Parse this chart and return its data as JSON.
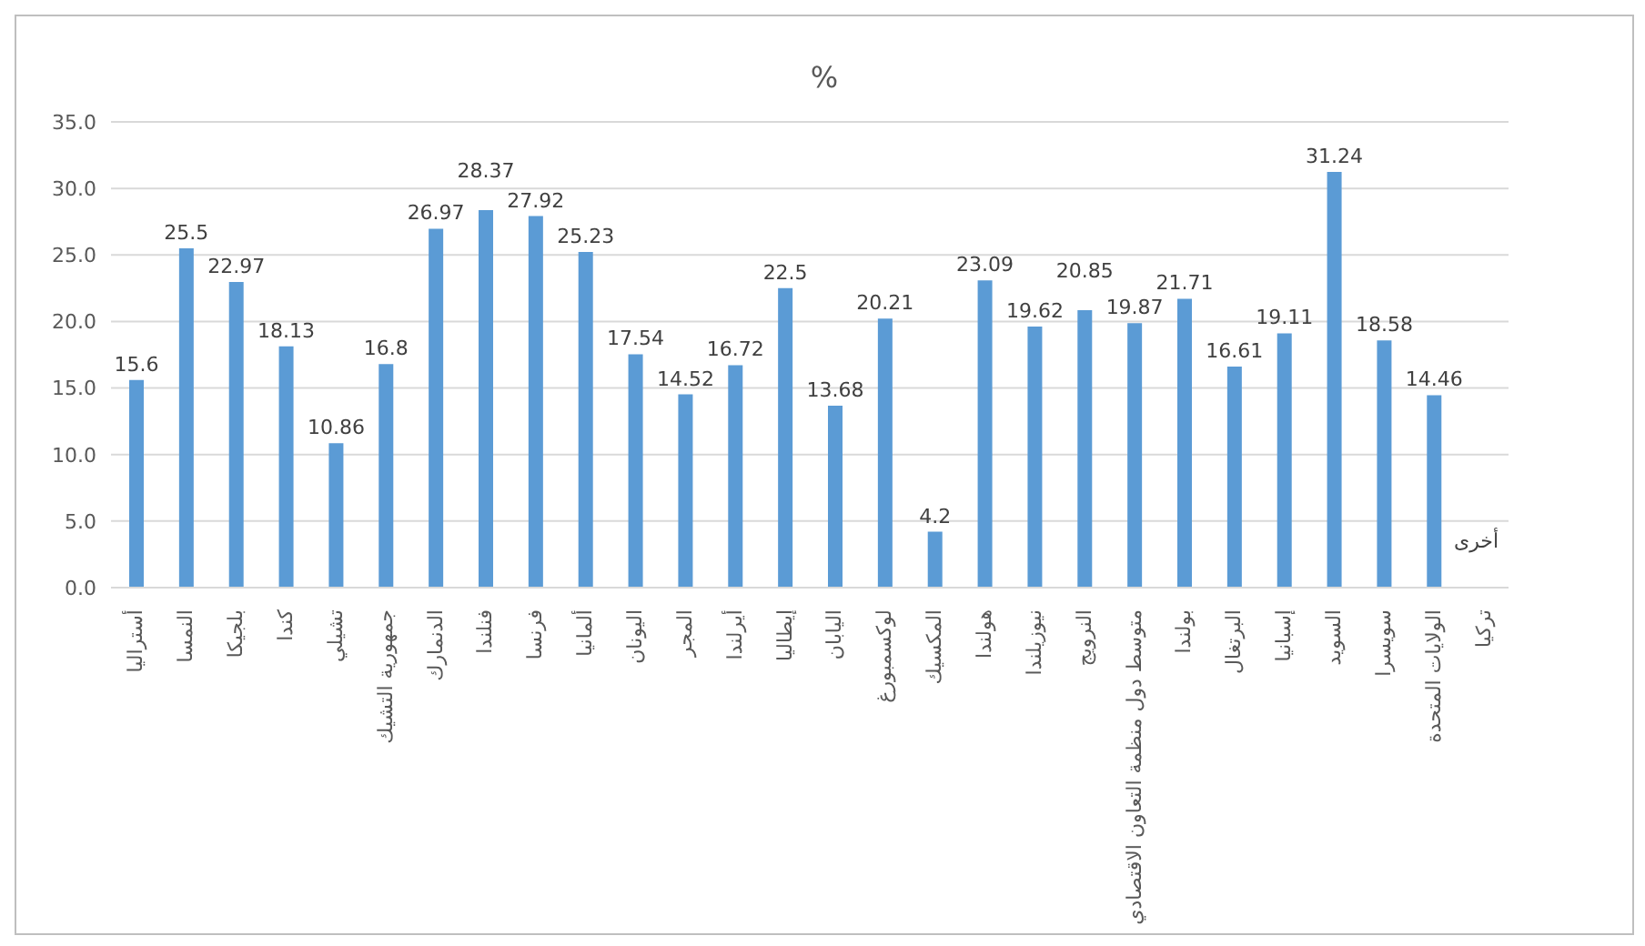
{
  "chart_data": {
    "type": "bar",
    "title": "%",
    "categories": [
      "أستراليا",
      "النمسا",
      "بلجيكا",
      "كندا",
      "تشيلي",
      "جمهورية التشيك",
      "الدنمارك",
      "فنلندا",
      "فرنسا",
      "ألمانيا",
      "اليونان",
      "المجر",
      "أيرلندا",
      "إيطاليا",
      "اليابان",
      "لوكسمبورغ",
      "المكسيك",
      "هولندا",
      "نيوزيلندا",
      "النرويج",
      "متوسط دول منظمة التعاون الاقتصادي",
      "بولندا",
      "البرتغال",
      "إسبانيا",
      "السويد",
      "سويسرا",
      "الولايات المتحدة",
      "تركيا"
    ],
    "values": [
      15.6,
      25.5,
      22.97,
      18.13,
      10.86,
      16.8,
      26.97,
      28.37,
      27.92,
      25.23,
      17.54,
      14.52,
      16.72,
      22.5,
      13.68,
      20.21,
      4.2,
      23.09,
      19.62,
      20.85,
      19.87,
      21.71,
      16.61,
      19.11,
      31.24,
      18.58,
      14.46,
      null
    ],
    "color": "#5b9bd5",
    "data_labels": true,
    "grid": "y",
    "ylim": [
      0,
      35
    ],
    "yticks": [
      {
        "value": 0,
        "label": "0.0"
      },
      {
        "value": 5,
        "label": "5.0"
      },
      {
        "value": 10,
        "label": "10.0"
      },
      {
        "value": 15,
        "label": "15.0"
      },
      {
        "value": 20,
        "label": "20.0"
      },
      {
        "value": 25,
        "label": "25.0"
      },
      {
        "value": 30,
        "label": "30.0"
      },
      {
        "value": 35,
        "label": "35.0"
      }
    ],
    "annotations": [
      "أخرى"
    ]
  }
}
